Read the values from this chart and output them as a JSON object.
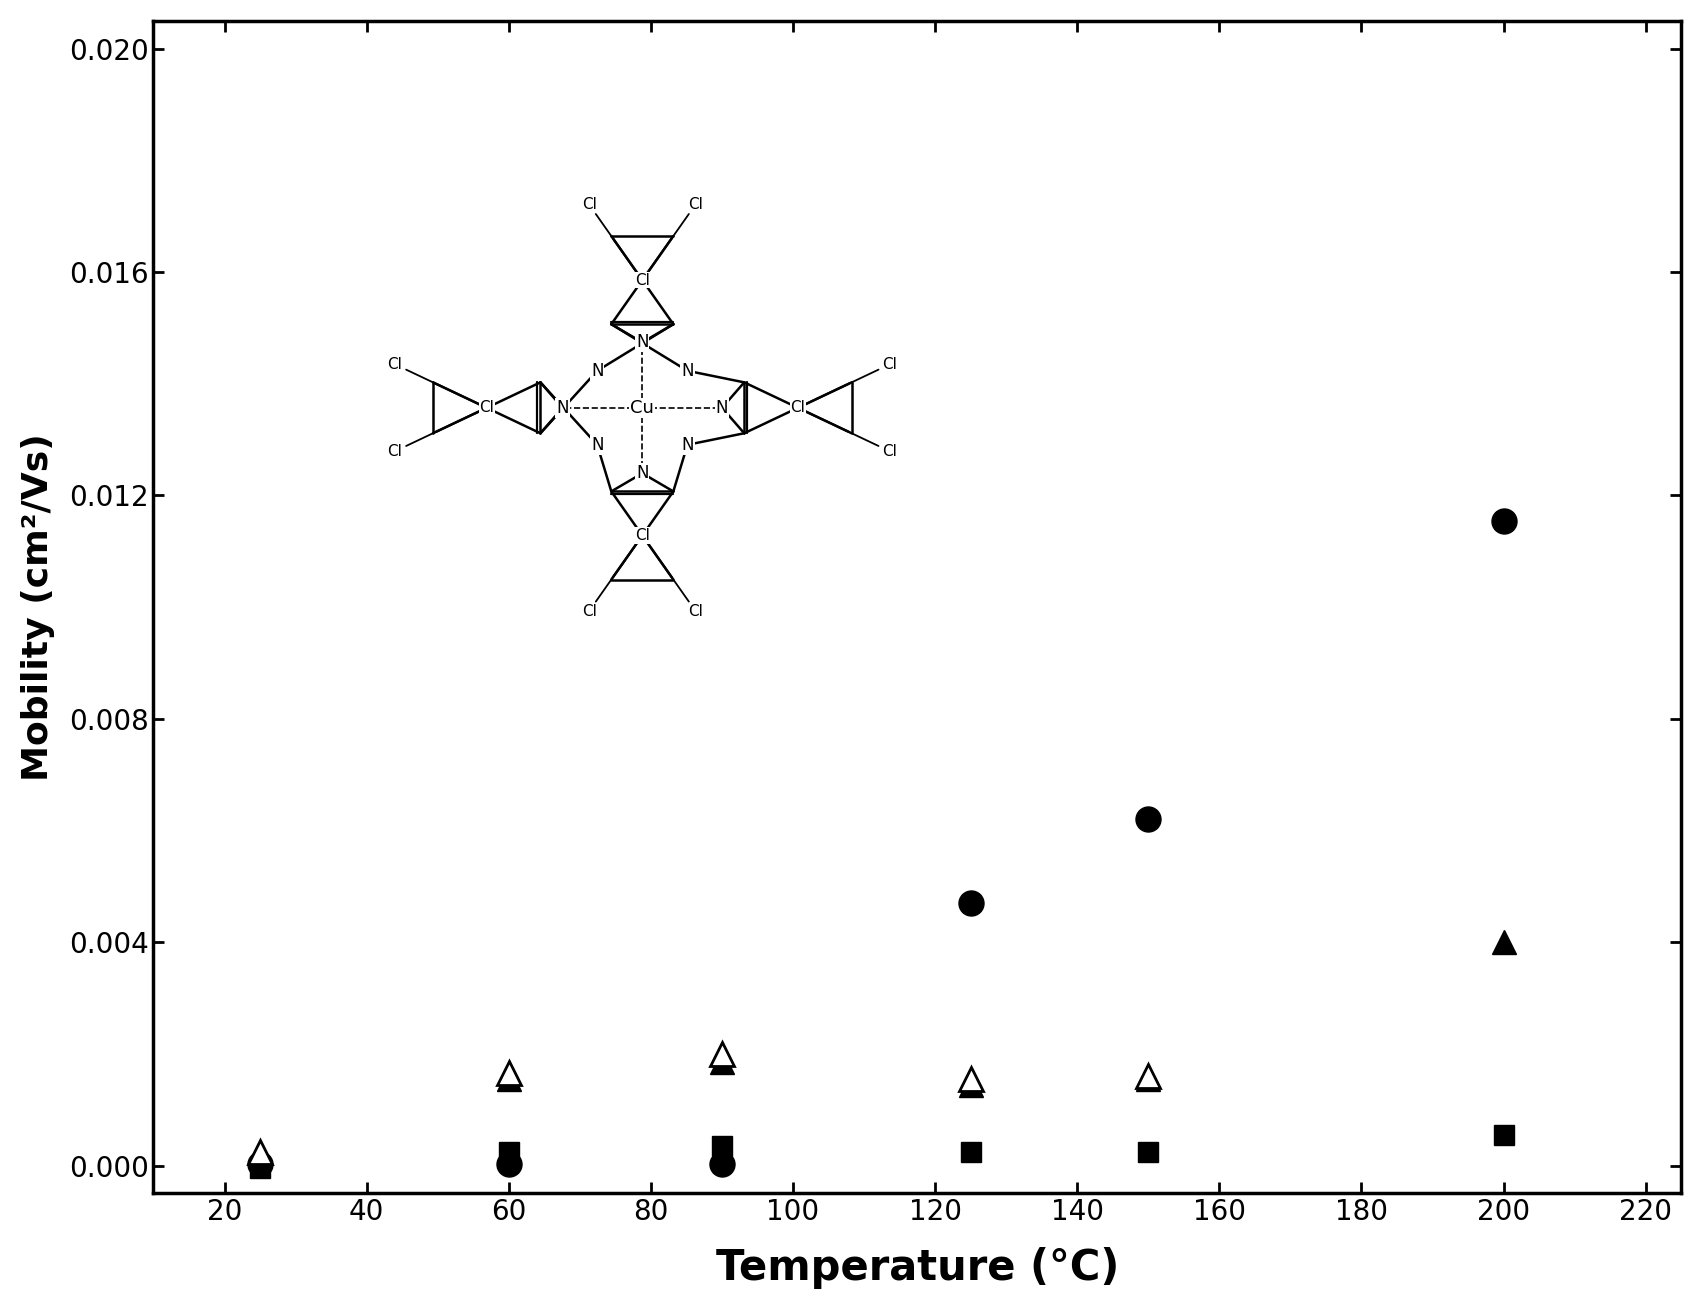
{
  "title": "",
  "xlabel": "Temperature (°C)",
  "ylabel": "Mobility (cm²/Vs)",
  "xlim": [
    10,
    225
  ],
  "ylim": [
    -0.0005,
    0.0205
  ],
  "xticks": [
    20,
    40,
    60,
    80,
    100,
    120,
    140,
    160,
    180,
    200,
    220
  ],
  "yticks": [
    0.0,
    0.004,
    0.008,
    0.012,
    0.016,
    0.02
  ],
  "series": {
    "filled_circle": {
      "x": [
        25,
        60,
        90,
        125,
        150,
        200
      ],
      "y": [
        2e-05,
        2e-05,
        2e-05,
        0.0047,
        0.0062,
        0.01155
      ]
    },
    "filled_triangle": {
      "x": [
        25,
        60,
        90,
        125,
        150,
        200
      ],
      "y": [
        0.00018,
        0.00155,
        0.00185,
        0.00145,
        0.00155,
        0.004
      ]
    },
    "filled_square": {
      "x": [
        25,
        60,
        90,
        125,
        150,
        200
      ],
      "y": [
        -5e-05,
        0.00025,
        0.00035,
        0.00025,
        0.00025,
        0.00055
      ]
    },
    "open_triangle": {
      "x": [
        25,
        60,
        90,
        125,
        150
      ],
      "y": [
        0.00025,
        0.00165,
        0.002,
        0.00155,
        0.0016
      ]
    }
  },
  "background_color": "#ffffff",
  "axes_linewidth": 2.5,
  "tick_fontsize": 20,
  "xlabel_fontsize": 30,
  "ylabel_fontsize": 26,
  "markersize_circle": 18,
  "markersize_triangle": 17,
  "markersize_square": 15
}
